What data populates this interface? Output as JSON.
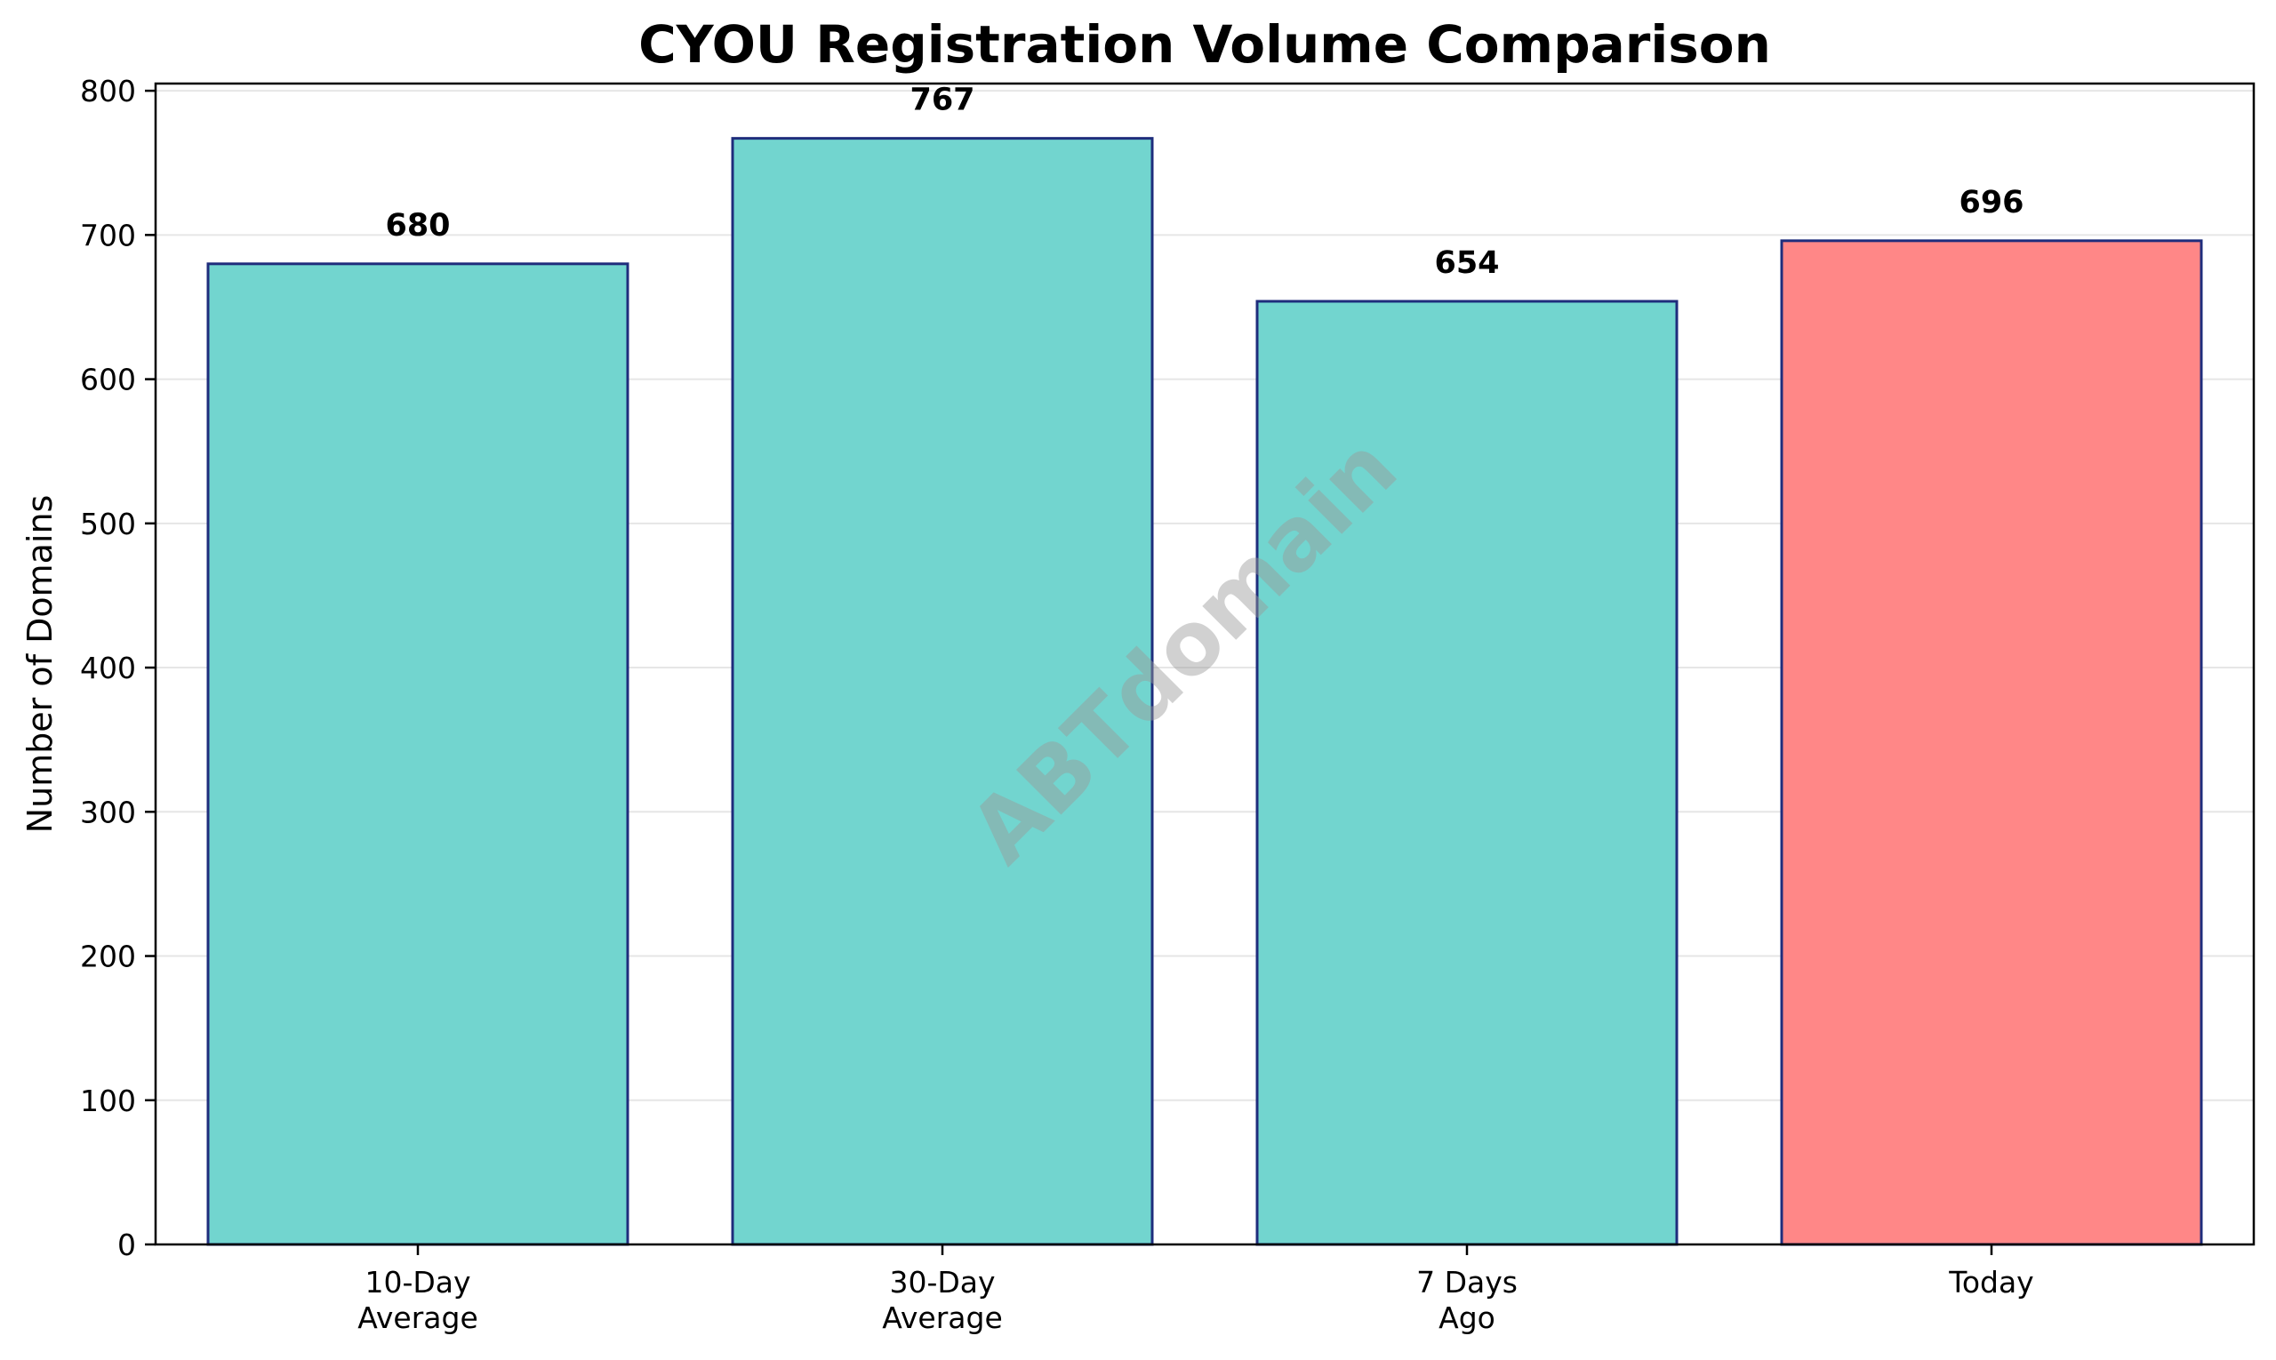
{
  "chart_data": {
    "type": "bar",
    "title": "CYOU Registration Volume Comparison",
    "ylabel": "Number of Domains",
    "xlabel": "",
    "categories": [
      [
        "10-Day",
        "Average"
      ],
      [
        "30-Day",
        "Average"
      ],
      [
        "7 Days",
        "Ago"
      ],
      [
        "Today"
      ]
    ],
    "values": [
      680,
      767,
      654,
      696
    ],
    "value_labels": [
      "680",
      "767",
      "654",
      "696"
    ],
    "yticks": [
      0,
      100,
      200,
      300,
      400,
      500,
      600,
      700,
      800
    ],
    "ylim": [
      0,
      805
    ],
    "grid": "y",
    "colors": {
      "default_bar": "#72d5cf",
      "highlight_bar": "#ff8787",
      "bar_edge": "#1f2d7c",
      "grid": "#e6e6e6"
    },
    "highlight_index": 3,
    "watermark": "ABTdomain"
  }
}
